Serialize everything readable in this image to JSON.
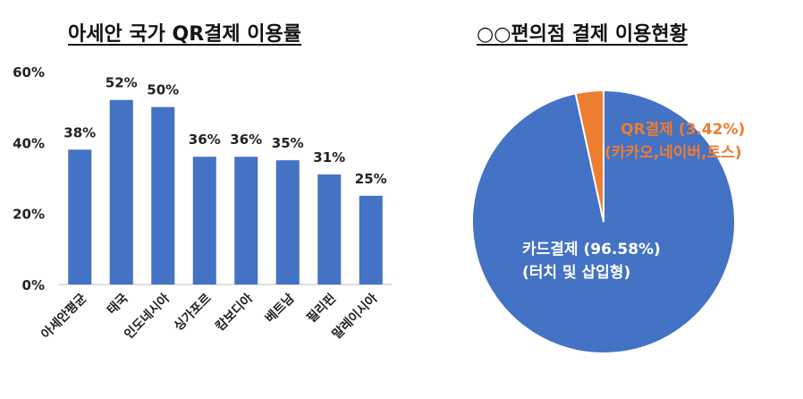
{
  "chart_data": [
    {
      "type": "bar",
      "title": "아세안 국가 QR결제 이용률",
      "categories": [
        "아세안평균",
        "태국",
        "인도네시아",
        "싱가포르",
        "캄보디아",
        "베트남",
        "필리핀",
        "말레이시아"
      ],
      "values": [
        38,
        52,
        50,
        36,
        36,
        35,
        31,
        25
      ],
      "value_labels": [
        "38%",
        "52%",
        "50%",
        "36%",
        "36%",
        "35%",
        "31%",
        "25%"
      ],
      "ylim": [
        0,
        60
      ],
      "yticks": [
        0,
        20,
        40,
        60
      ],
      "ytick_labels": [
        "0%",
        "20%",
        "40%",
        "60%"
      ],
      "grid": false,
      "bar_color": "#4472C4"
    },
    {
      "type": "pie",
      "title": "○○편의점 결제 이용현황",
      "slices": [
        {
          "label": "카드결제 (96.58%)",
          "sublabel": "(터치 및 삽입형)",
          "value": 96.58,
          "color": "#4472C4",
          "label_color": "#FFFFFF"
        },
        {
          "label": "QR결제 (3.42%)",
          "sublabel": "(카카오,네이버,토스)",
          "value": 3.42,
          "color": "#ED7D31",
          "label_color": "#ED7D31"
        }
      ]
    }
  ]
}
